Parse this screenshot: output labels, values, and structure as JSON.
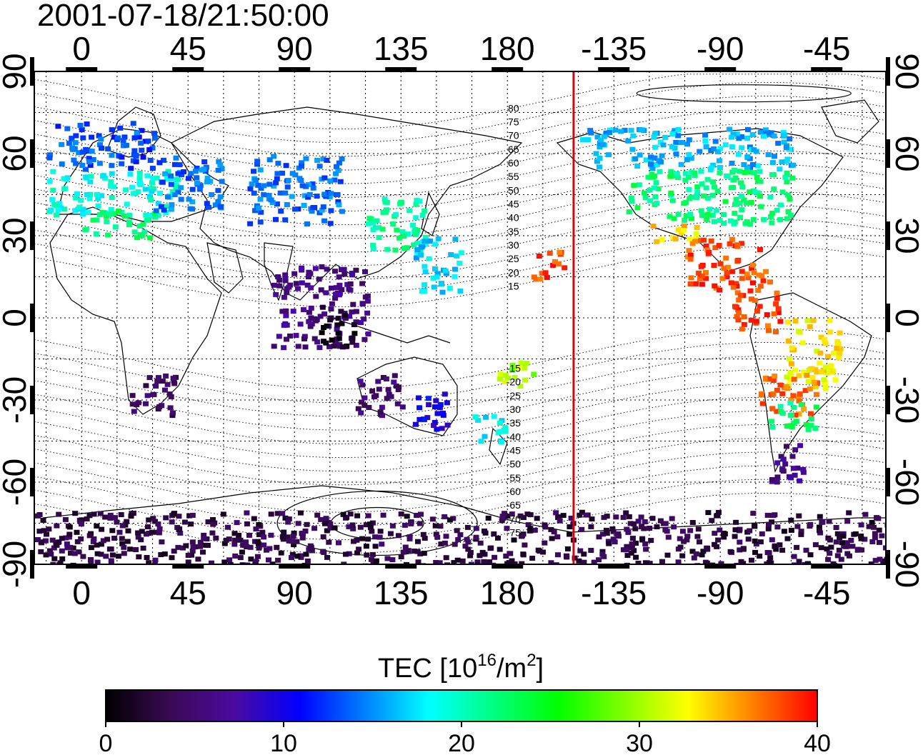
{
  "title": "2001-07-18/21:50:00",
  "map": {
    "projection": "equirectangular",
    "lon_range": [
      -20,
      340
    ],
    "lat_range": [
      -90,
      90
    ],
    "grid": true,
    "top_ticks": [
      "0",
      "45",
      "90",
      "135",
      "180",
      "-135",
      "-90",
      "-45"
    ],
    "bottom_ticks": [
      "0",
      "45",
      "90",
      "135",
      "180",
      "-135",
      "-90",
      "-45"
    ],
    "left_ticks": [
      "90",
      "60",
      "30",
      "0",
      "-30",
      "-60",
      "-90"
    ],
    "right_ticks": [
      "90",
      "60",
      "30",
      "0",
      "-30",
      "-60",
      "-90"
    ],
    "tick_lon_values": [
      0,
      45,
      90,
      135,
      180,
      225,
      270,
      315
    ],
    "tick_lat_values": [
      90,
      60,
      30,
      0,
      -30,
      -60,
      -90
    ],
    "terminator_meridian_lon": -152,
    "terminator_color": "#e00000",
    "magnetic_latitude_labels": [
      "80",
      "75",
      "70",
      "65",
      "60",
      "55",
      "50",
      "45",
      "40",
      "35",
      "30",
      "25",
      "20",
      "15",
      "-15",
      "-20",
      "-25",
      "-30",
      "-35",
      "-40",
      "-45",
      "-50",
      "-55",
      "-60",
      "-65",
      "-70",
      "-75"
    ]
  },
  "colorbar": {
    "title_prefix": "TEC  [10",
    "title_sup1": "16",
    "title_mid": "/m",
    "title_sup2": "2",
    "title_suffix": "]",
    "min": 0,
    "max": 40,
    "ticks": [
      "0",
      "10",
      "20",
      "30",
      "40"
    ],
    "colormap": [
      "#000000",
      "#3a0a55",
      "#4a0aa0",
      "#0000ff",
      "#0080ff",
      "#00ffff",
      "#00ff80",
      "#00ff00",
      "#80ff00",
      "#ffff00",
      "#ff8000",
      "#ff0000"
    ]
  },
  "chart_data": {
    "type": "heatmap",
    "title": "2001-07-18/21:50:00",
    "xlabel": "",
    "ylabel": "",
    "xlim": [
      -20,
      340
    ],
    "ylim": [
      -90,
      90
    ],
    "value_label": "TEC [10^16/m^2]",
    "value_range": [
      0,
      40
    ],
    "regions": [
      {
        "lon": [
          -15,
          30
        ],
        "lat": [
          55,
          72
        ],
        "tec": 13
      },
      {
        "lon": [
          -15,
          40
        ],
        "lat": [
          38,
          55
        ],
        "tec": 19
      },
      {
        "lon": [
          0,
          30
        ],
        "lat": [
          30,
          40
        ],
        "tec": 22
      },
      {
        "lon": [
          30,
          60
        ],
        "lat": [
          40,
          60
        ],
        "tec": 14
      },
      {
        "lon": [
          70,
          110
        ],
        "lat": [
          35,
          60
        ],
        "tec": 14
      },
      {
        "lon": [
          120,
          145
        ],
        "lat": [
          25,
          45
        ],
        "tec": 21
      },
      {
        "lon": [
          140,
          160
        ],
        "lat": [
          10,
          30
        ],
        "tec": 17
      },
      {
        "lon": [
          80,
          120
        ],
        "lat": [
          -10,
          20
        ],
        "tec": 6
      },
      {
        "lon": [
          100,
          115
        ],
        "lat": [
          -10,
          5
        ],
        "tec": 1
      },
      {
        "lon": [
          20,
          40
        ],
        "lat": [
          -35,
          -20
        ],
        "tec": 4
      },
      {
        "lon": [
          115,
          135
        ],
        "lat": [
          -35,
          -20
        ],
        "tec": 5
      },
      {
        "lon": [
          140,
          155
        ],
        "lat": [
          -40,
          -25
        ],
        "tec": 10
      },
      {
        "lon": [
          165,
          180
        ],
        "lat": [
          -45,
          -35
        ],
        "tec": 18
      },
      {
        "lon": [
          175,
          190
        ],
        "lat": [
          -25,
          -15
        ],
        "tec": 30
      },
      {
        "lon": [
          190,
          205
        ],
        "lat": [
          15,
          25
        ],
        "tec": 38
      },
      {
        "lon": [
          210,
          300
        ],
        "lat": [
          55,
          70
        ],
        "tec": 16
      },
      {
        "lon": [
          230,
          300
        ],
        "lat": [
          35,
          55
        ],
        "tec": 22
      },
      {
        "lon": [
          240,
          260
        ],
        "lat": [
          28,
          35
        ],
        "tec": 34
      },
      {
        "lon": [
          255,
          290
        ],
        "lat": [
          10,
          30
        ],
        "tec": 38
      },
      {
        "lon": [
          275,
          295
        ],
        "lat": [
          -5,
          10
        ],
        "tec": 38
      },
      {
        "lon": [
          295,
          320
        ],
        "lat": [
          -25,
          0
        ],
        "tec": 33
      },
      {
        "lon": [
          285,
          310
        ],
        "lat": [
          -35,
          -20
        ],
        "tec": 37
      },
      {
        "lon": [
          290,
          310
        ],
        "lat": [
          -40,
          -30
        ],
        "tec": 22
      },
      {
        "lon": [
          290,
          305
        ],
        "lat": [
          -60,
          -45
        ],
        "tec": 6
      },
      {
        "lon": [
          -20,
          340
        ],
        "lat": [
          -90,
          -70
        ],
        "tec": 3
      }
    ]
  }
}
